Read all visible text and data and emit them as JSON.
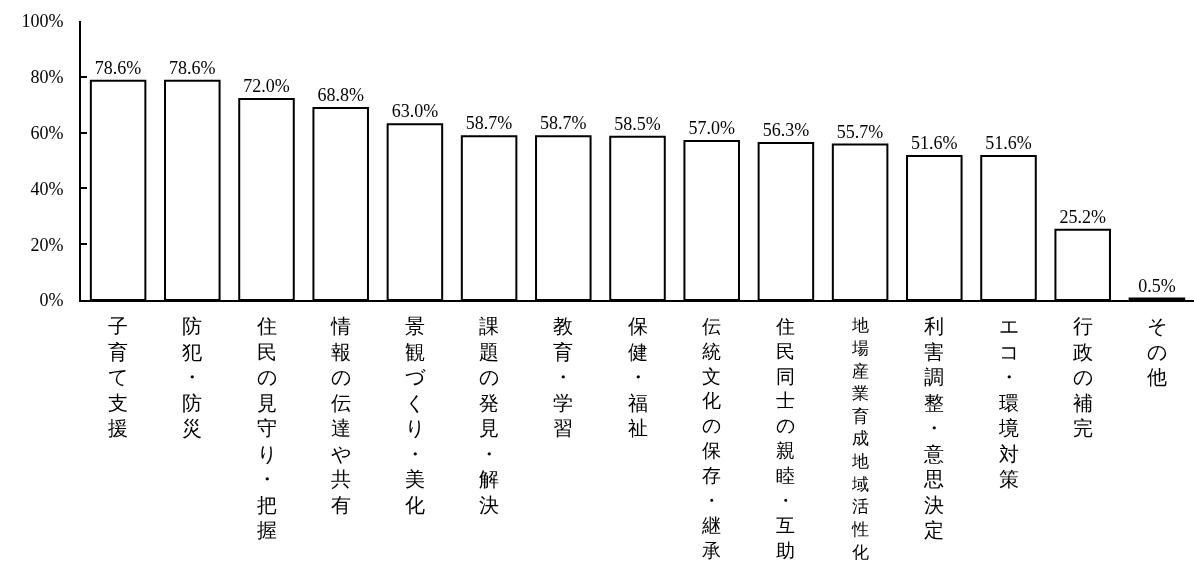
{
  "chart_data": {
    "type": "bar",
    "categories": [
      "子育て支援",
      "防犯・防災",
      "住民の見守り・把握",
      "情報の伝達や共有",
      "景観づくり・美化",
      "課題の発見・解決",
      "教育・学習",
      "保健・福祉",
      "伝統文化の保存・継承",
      "住民同士の親睦・互助",
      "地場産業育成地域活性化",
      "利害調整・意思決定",
      "エコ・環境対策",
      "行政の補完",
      "その他"
    ],
    "values": [
      78.6,
      78.6,
      72.0,
      68.8,
      63.0,
      58.7,
      58.7,
      58.5,
      57.0,
      56.3,
      55.7,
      51.6,
      51.6,
      25.2,
      0.5
    ],
    "value_labels": [
      "78.6%",
      "78.6%",
      "72.0%",
      "68.8%",
      "63.0%",
      "58.7%",
      "58.7%",
      "58.5%",
      "57.0%",
      "56.3%",
      "55.7%",
      "51.6%",
      "51.6%",
      "25.2%",
      "0.5%"
    ],
    "color": "#ffffff",
    "ylim": [
      0,
      100
    ],
    "yticks": [
      {
        "value": 0,
        "label": "0%"
      },
      {
        "value": 20,
        "label": "20%"
      },
      {
        "value": 40,
        "label": "40%"
      },
      {
        "value": 60,
        "label": "60%"
      },
      {
        "value": 80,
        "label": "80%"
      },
      {
        "value": 100,
        "label": "100%"
      }
    ]
  }
}
